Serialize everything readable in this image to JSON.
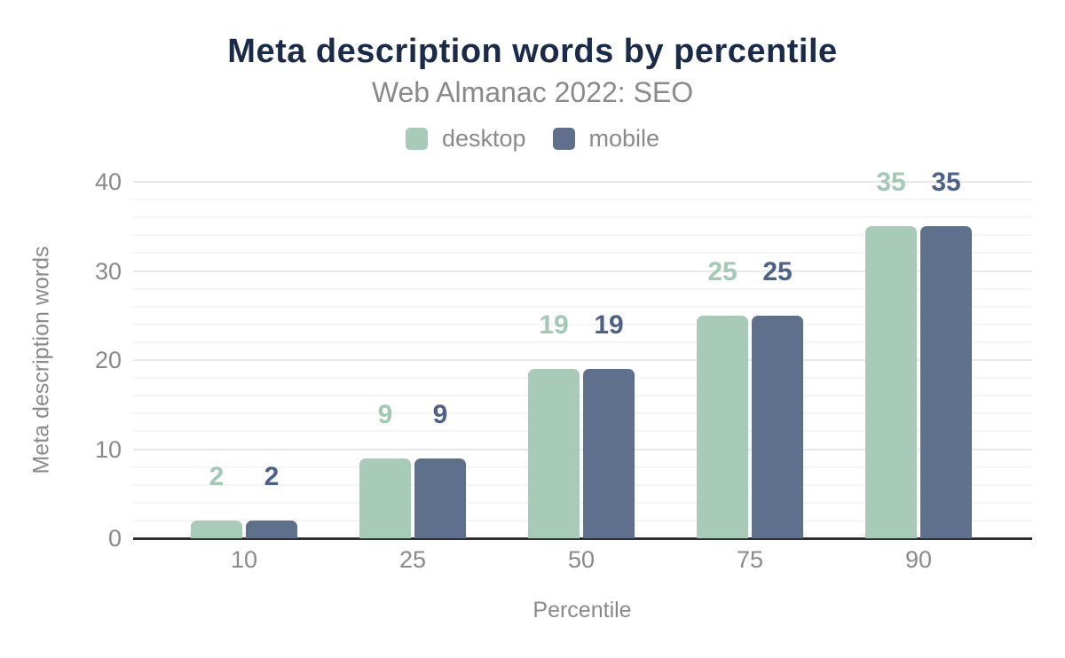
{
  "chart_data": {
    "type": "bar",
    "title": "Meta description words by percentile",
    "subtitle": "Web Almanac 2022: SEO",
    "categories": [
      "10",
      "25",
      "50",
      "75",
      "90"
    ],
    "series": [
      {
        "name": "desktop",
        "color": "#a7cab9",
        "label_color": "#a2c9b6",
        "values": [
          2,
          9,
          19,
          25,
          35
        ]
      },
      {
        "name": "mobile",
        "color": "#5f708d",
        "label_color": "#4e6189",
        "values": [
          2,
          9,
          19,
          25,
          35
        ]
      }
    ],
    "xlabel": "Percentile",
    "ylabel": "Meta description words",
    "ylim": [
      0,
      40
    ],
    "y_major_ticks": [
      0,
      10,
      20,
      30,
      40
    ],
    "y_minor_step": 2,
    "grid": true,
    "legend_position": "top",
    "colors": {
      "title_text": "#1a2b49",
      "muted_text": "#8a8a8a",
      "axis_line": "#2e2e2e",
      "gridline_minor": "#f5f5f5",
      "gridline_major": "#e9e9e9",
      "background": "#ffffff"
    }
  }
}
